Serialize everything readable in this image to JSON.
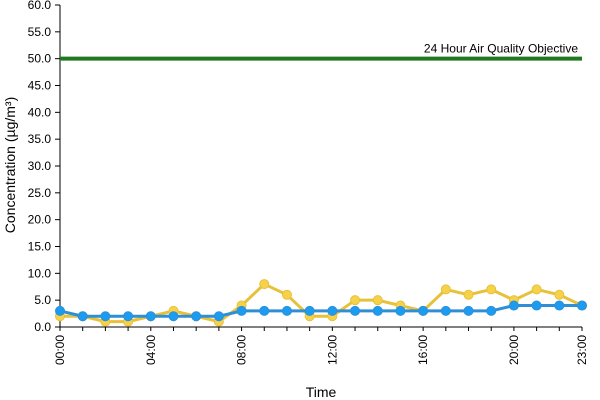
{
  "chart_data": {
    "type": "line",
    "xlabel": "Time",
    "ylabel": "Concentration (µg/m³)",
    "ylim": [
      0,
      60
    ],
    "yticks": [
      "0.0",
      "5.0",
      "10.0",
      "15.0",
      "20.0",
      "25.0",
      "30.0",
      "35.0",
      "40.0",
      "45.0",
      "50.0",
      "55.0",
      "60.0"
    ],
    "xticks": [
      "00:00",
      "04:00",
      "08:00",
      "12:00",
      "16:00",
      "20:00",
      "23:00"
    ],
    "x": [
      "00:00",
      "01:00",
      "02:00",
      "03:00",
      "04:00",
      "05:00",
      "06:00",
      "07:00",
      "08:00",
      "09:00",
      "10:00",
      "11:00",
      "12:00",
      "13:00",
      "14:00",
      "15:00",
      "16:00",
      "17:00",
      "18:00",
      "19:00",
      "20:00",
      "21:00",
      "22:00",
      "23:00"
    ],
    "grid": false,
    "series": [
      {
        "color": "#e8c13a",
        "marker_color": "#f5d24a",
        "values": [
          2,
          2,
          1,
          1,
          2,
          3,
          2,
          1,
          4,
          8,
          6,
          2,
          2,
          5,
          5,
          4,
          3,
          7,
          6,
          7,
          5,
          7,
          6,
          4
        ]
      },
      {
        "color": "#2e8fd6",
        "marker_color": "#1c9cf0",
        "values": [
          3,
          2,
          2,
          2,
          2,
          2,
          2,
          2,
          3,
          3,
          3,
          3,
          3,
          3,
          3,
          3,
          3,
          3,
          3,
          3,
          4,
          4,
          4,
          4
        ]
      }
    ],
    "reference_line": {
      "label": "24 Hour Air Quality Objective",
      "value": 50,
      "color": "#1f7a1f"
    }
  }
}
